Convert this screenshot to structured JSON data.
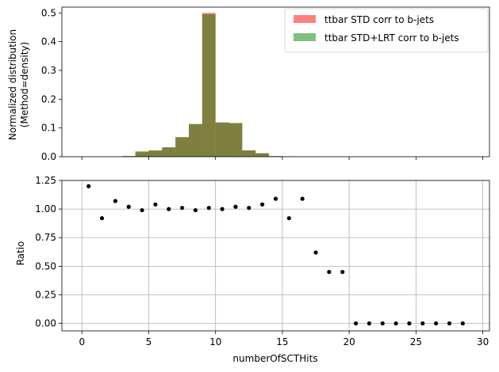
{
  "chart_data": [
    {
      "type": "bar",
      "title": "",
      "xlabel": "",
      "ylabel_lines": [
        "Normalized distribution",
        "(Method=density)"
      ],
      "xlim": [
        -1.5,
        30.5
      ],
      "ylim": [
        0,
        0.52
      ],
      "yticks": [
        0.0,
        0.1,
        0.2,
        0.3,
        0.4,
        0.5
      ],
      "ytick_labels": [
        "0.0",
        "0.1",
        "0.2",
        "0.3",
        "0.4",
        "0.5"
      ],
      "xticks": [
        0,
        5,
        10,
        15,
        20,
        25,
        30
      ],
      "grid": false,
      "legend_position": "top-right",
      "bin_edges": [
        0,
        1,
        2,
        3,
        4,
        5,
        6,
        7,
        8,
        9,
        10,
        11,
        12,
        13,
        14,
        15,
        16,
        17,
        18,
        19,
        20,
        21,
        22,
        23,
        24,
        25,
        26,
        27,
        28,
        29
      ],
      "series": [
        {
          "name": "ttbar STD corr to b-jets",
          "color": "#ff0000",
          "alpha": 0.5,
          "values": [
            0,
            0,
            0,
            0.002,
            0.016,
            0.022,
            0.032,
            0.068,
            0.113,
            0.5,
            0.119,
            0.117,
            0.022,
            0.012,
            0.002,
            0.001,
            0.0005,
            0.0002,
            0.0001,
            0.0001,
            0,
            0,
            0,
            0,
            0,
            0,
            0,
            0,
            0
          ]
        },
        {
          "name": "ttbar STD+LRT corr to b-jets",
          "color": "#008000",
          "alpha": 0.5,
          "values": [
            0,
            0,
            0,
            0.0024,
            0.019,
            0.0215,
            0.033,
            0.068,
            0.114,
            0.495,
            0.119,
            0.117,
            0.022,
            0.012,
            0.0021,
            0.0011,
            0.00045,
            0.0002,
            0.00012,
            0.00012,
            0,
            0,
            0,
            0,
            0,
            0,
            0,
            0,
            0
          ]
        }
      ]
    },
    {
      "type": "scatter",
      "title": "",
      "xlabel": "numberOfSCTHits",
      "ylabel": "Ratio",
      "xlim": [
        -1.5,
        30.5
      ],
      "ylim": [
        -0.065,
        1.25
      ],
      "xticks": [
        0,
        5,
        10,
        15,
        20,
        25,
        30
      ],
      "xtick_labels": [
        "0",
        "5",
        "10",
        "15",
        "20",
        "25",
        "30"
      ],
      "yticks": [
        0.0,
        0.25,
        0.5,
        0.75,
        1.0,
        1.25
      ],
      "ytick_labels": [
        "0.00",
        "0.25",
        "0.50",
        "0.75",
        "1.00",
        "1.25"
      ],
      "grid": true,
      "marker_color": "#000000",
      "x": [
        0.5,
        1.5,
        2.5,
        3.5,
        4.5,
        5.5,
        6.5,
        7.5,
        8.5,
        9.5,
        10.5,
        11.5,
        12.5,
        13.5,
        14.5,
        15.5,
        16.5,
        17.5,
        18.5,
        19.5,
        20.5,
        21.5,
        22.5,
        23.5,
        24.5,
        25.5,
        26.5,
        27.5,
        28.5
      ],
      "y": [
        1.2,
        0.92,
        1.07,
        1.02,
        0.99,
        1.04,
        1.0,
        1.01,
        0.99,
        1.01,
        1.0,
        1.02,
        1.01,
        1.04,
        1.09,
        0.92,
        1.09,
        0.62,
        0.45,
        0.45,
        0,
        0,
        0,
        0,
        0,
        0,
        0,
        0,
        0
      ]
    }
  ]
}
